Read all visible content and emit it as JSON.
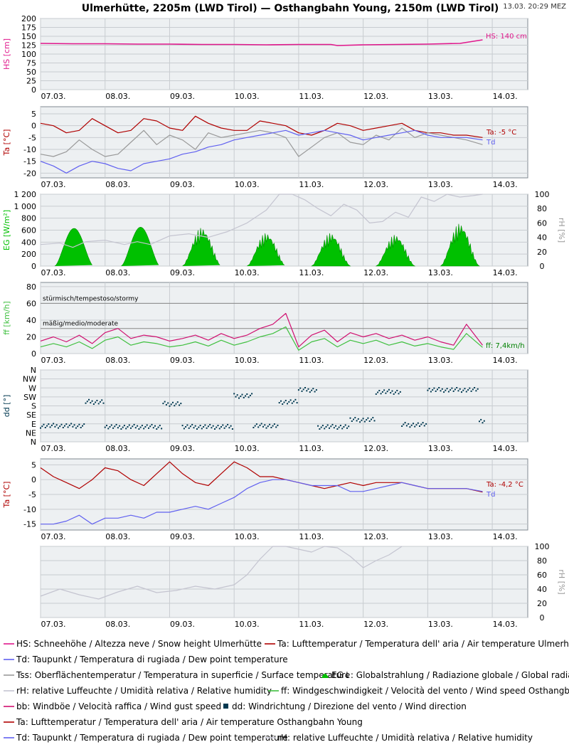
{
  "header": {
    "title": "Ulmerhütte, 2205m (LWD Tirol) — Osthangbahn Young, 2150m (LWD Tirol)",
    "timestamp": "13.03. 20:29 MEZ"
  },
  "colors": {
    "hs": "#e0188c",
    "ta": "#b00000",
    "td": "#6060f0",
    "tss": "#999999",
    "eg": "#00c000",
    "rh": "#c4c4d0",
    "ff": "#40c040",
    "bb": "#d01070",
    "dd": "#003850",
    "plot_bg": "#edf0f2",
    "grid": "#c8ccd0"
  },
  "chart_data": [
    {
      "id": "hs",
      "type": "line",
      "ylabel": "HS [cm]",
      "ylim": [
        0,
        200
      ],
      "yticks": [
        "0",
        "25",
        "50",
        "75",
        "100",
        "125",
        "150",
        "175",
        "200"
      ],
      "categories": [
        "07.03.",
        "08.03.",
        "09.03.",
        "10.03.",
        "11.03.",
        "12.03.",
        "13.03.",
        "14.03."
      ],
      "annotation": "HS: 140 cm",
      "series": [
        {
          "key": "hs",
          "x": [
            0,
            0.5,
            1,
            1.5,
            2,
            2.5,
            3,
            3.5,
            4,
            4.5,
            4.6,
            5,
            5.5,
            6,
            6.5,
            6.85
          ],
          "y": [
            130,
            129,
            129,
            128,
            128,
            127,
            127,
            126,
            127,
            127,
            124,
            126,
            127,
            128,
            130,
            140
          ]
        }
      ]
    },
    {
      "id": "ta1",
      "type": "line",
      "ylabel": "Ta [°C]",
      "ylim": [
        -22,
        8
      ],
      "yticks": [
        "5",
        "0",
        "-5",
        "-10",
        "-15",
        "-20"
      ],
      "categories": [
        "07.03.",
        "08.03.",
        "09.03.",
        "10.03.",
        "11.03.",
        "12.03.",
        "13.03.",
        "14.03."
      ],
      "annotation_ta": "Ta: -5 °C",
      "annotation_td": "Td",
      "series": [
        {
          "key": "ta",
          "x": [
            0,
            0.2,
            0.4,
            0.6,
            0.8,
            1.0,
            1.2,
            1.4,
            1.6,
            1.8,
            2.0,
            2.2,
            2.4,
            2.6,
            2.8,
            3.0,
            3.2,
            3.4,
            3.6,
            3.8,
            4.0,
            4.2,
            4.4,
            4.6,
            4.8,
            5.0,
            5.2,
            5.4,
            5.6,
            5.8,
            6.0,
            6.2,
            6.4,
            6.6,
            6.85
          ],
          "y": [
            1,
            0,
            -3,
            -2,
            3,
            0,
            -3,
            -2,
            3,
            2,
            -1,
            -2,
            4,
            1,
            -1,
            -2,
            -2,
            2,
            1,
            0,
            -3,
            -4,
            -2,
            1,
            0,
            -2,
            -1,
            0,
            1,
            -2,
            -3,
            -3,
            -4,
            -4,
            -5
          ]
        },
        {
          "key": "tss",
          "x": [
            0,
            0.2,
            0.4,
            0.6,
            0.8,
            1.0,
            1.2,
            1.4,
            1.6,
            1.8,
            2.0,
            2.2,
            2.4,
            2.6,
            2.8,
            3.0,
            3.2,
            3.4,
            3.6,
            3.8,
            4.0,
            4.2,
            4.4,
            4.6,
            4.8,
            5.0,
            5.2,
            5.4,
            5.6,
            5.8,
            6.0,
            6.2,
            6.4,
            6.6,
            6.85
          ],
          "y": [
            -12,
            -13,
            -11,
            -6,
            -10,
            -13,
            -12,
            -7,
            -2,
            -8,
            -4,
            -6,
            -10,
            -3,
            -5,
            -4,
            -3,
            -2,
            -3,
            -5,
            -13,
            -9,
            -5,
            -3,
            -7,
            -8,
            -4,
            -6,
            -1,
            -5,
            -3,
            -4,
            -5,
            -6,
            -8
          ]
        },
        {
          "key": "td",
          "x": [
            0,
            0.2,
            0.4,
            0.6,
            0.8,
            1.0,
            1.2,
            1.4,
            1.6,
            1.8,
            2.0,
            2.2,
            2.4,
            2.6,
            2.8,
            3.0,
            3.2,
            3.4,
            3.6,
            3.8,
            4.0,
            4.2,
            4.4,
            4.6,
            4.8,
            5.0,
            5.2,
            5.4,
            5.6,
            5.8,
            6.0,
            6.2,
            6.4,
            6.6,
            6.85
          ],
          "y": [
            -15,
            -17,
            -20,
            -17,
            -15,
            -16,
            -18,
            -19,
            -16,
            -15,
            -14,
            -12,
            -11,
            -9,
            -8,
            -6,
            -5,
            -4,
            -3,
            -2,
            -4,
            -3,
            -2,
            -3,
            -4,
            -6,
            -5,
            -4,
            -3,
            -2,
            -4,
            -5,
            -5,
            -5,
            -6
          ]
        }
      ]
    },
    {
      "id": "eg",
      "type": "area",
      "ylabel": "EG [W/m²]",
      "ylabel_right": "rH [%]",
      "ylim": [
        0,
        1200
      ],
      "ylim_right": [
        0,
        100
      ],
      "yticks": [
        "0",
        "200",
        "400",
        "600",
        "800",
        "1 000",
        "1 200"
      ],
      "yticks_right": [
        "0",
        "20",
        "40",
        "60",
        "80",
        "100"
      ],
      "categories": [
        "07.03.",
        "08.03.",
        "09.03.",
        "10.03.",
        "11.03.",
        "12.03.",
        "13.03.",
        "14.03."
      ],
      "radiation_days": [
        {
          "center": 0.52,
          "peak": 630
        },
        {
          "center": 1.55,
          "peak": 650
        },
        {
          "center": 2.5,
          "peak": 650
        },
        {
          "center": 3.5,
          "peak": 560
        },
        {
          "center": 4.5,
          "peak": 560
        },
        {
          "center": 5.5,
          "peak": 530
        },
        {
          "center": 6.5,
          "peak": 720
        },
        {
          "center": 7.5,
          "peak": 560
        }
      ],
      "series": [
        {
          "key": "rh",
          "x": [
            0,
            0.3,
            0.5,
            0.7,
            1.0,
            1.3,
            1.5,
            1.7,
            2.0,
            2.3,
            2.6,
            2.9,
            3.2,
            3.5,
            3.7,
            3.9,
            4.1,
            4.3,
            4.5,
            4.7,
            4.9,
            5.1,
            5.3,
            5.5,
            5.7,
            5.9,
            6.1,
            6.3,
            6.5,
            6.7,
            6.85
          ],
          "y": [
            30,
            32,
            26,
            34,
            36,
            30,
            34,
            30,
            42,
            45,
            40,
            48,
            60,
            78,
            100,
            100,
            92,
            80,
            70,
            86,
            78,
            60,
            62,
            75,
            68,
            96,
            90,
            100,
            96,
            98,
            100
          ]
        }
      ]
    },
    {
      "id": "ff",
      "type": "line",
      "ylabel": "ff [km/h]",
      "ylim": [
        0,
        85
      ],
      "yticks": [
        "0",
        "20",
        "40",
        "60",
        "80"
      ],
      "categories": [
        "07.03.",
        "08.03.",
        "09.03.",
        "10.03.",
        "11.03.",
        "12.03.",
        "13.03.",
        "14.03."
      ],
      "band_labels": [
        "stürmisch/tempestoso/stormy",
        "mäßig/medio/moderate"
      ],
      "annotation": "ff: 7,4km/h",
      "series": [
        {
          "key": "bb",
          "x": [
            0,
            0.2,
            0.4,
            0.6,
            0.8,
            1.0,
            1.2,
            1.4,
            1.6,
            1.8,
            2.0,
            2.2,
            2.4,
            2.6,
            2.8,
            3.0,
            3.2,
            3.4,
            3.6,
            3.8,
            4.0,
            4.2,
            4.4,
            4.6,
            4.8,
            5.0,
            5.2,
            5.4,
            5.6,
            5.8,
            6.0,
            6.2,
            6.4,
            6.6,
            6.85
          ],
          "y": [
            15,
            20,
            14,
            22,
            12,
            25,
            30,
            18,
            22,
            20,
            15,
            18,
            22,
            16,
            24,
            18,
            22,
            30,
            35,
            48,
            8,
            22,
            28,
            14,
            25,
            20,
            24,
            18,
            22,
            16,
            20,
            14,
            10,
            35,
            10
          ]
        },
        {
          "key": "ff",
          "x": [
            0,
            0.2,
            0.4,
            0.6,
            0.8,
            1.0,
            1.2,
            1.4,
            1.6,
            1.8,
            2.0,
            2.2,
            2.4,
            2.6,
            2.8,
            3.0,
            3.2,
            3.4,
            3.6,
            3.8,
            4.0,
            4.2,
            4.4,
            4.6,
            4.8,
            5.0,
            5.2,
            5.4,
            5.6,
            5.8,
            6.0,
            6.2,
            6.4,
            6.6,
            6.85
          ],
          "y": [
            8,
            12,
            8,
            14,
            6,
            16,
            20,
            10,
            14,
            12,
            8,
            10,
            14,
            9,
            16,
            10,
            14,
            20,
            24,
            32,
            4,
            14,
            18,
            8,
            16,
            12,
            16,
            10,
            14,
            9,
            12,
            8,
            5,
            24,
            7.4
          ]
        }
      ]
    },
    {
      "id": "dd",
      "type": "scatter",
      "ylabel": "dd [°]",
      "ylim": [
        0,
        360
      ],
      "yticks": [
        "N",
        "NE",
        "E",
        "SE",
        "S",
        "SW",
        "W",
        "NW",
        "N"
      ],
      "categories": [
        "07.03.",
        "08.03.",
        "09.03.",
        "10.03.",
        "11.03.",
        "12.03.",
        "13.03.",
        "14.03."
      ],
      "segments": [
        {
          "x0": 0.0,
          "x1": 0.7,
          "dir": 80
        },
        {
          "x0": 0.7,
          "x1": 1.0,
          "dir": 200
        },
        {
          "x0": 1.0,
          "x1": 1.9,
          "dir": 75
        },
        {
          "x0": 1.9,
          "x1": 2.2,
          "dir": 190
        },
        {
          "x0": 2.2,
          "x1": 3.0,
          "dir": 75
        },
        {
          "x0": 3.0,
          "x1": 3.3,
          "dir": 230
        },
        {
          "x0": 3.3,
          "x1": 3.7,
          "dir": 80
        },
        {
          "x0": 3.7,
          "x1": 4.0,
          "dir": 200
        },
        {
          "x0": 4.0,
          "x1": 4.3,
          "dir": 260
        },
        {
          "x0": 4.3,
          "x1": 4.8,
          "dir": 75
        },
        {
          "x0": 4.8,
          "x1": 5.2,
          "dir": 110
        },
        {
          "x0": 5.2,
          "x1": 5.6,
          "dir": 250
        },
        {
          "x0": 5.6,
          "x1": 6.0,
          "dir": 85
        },
        {
          "x0": 6.0,
          "x1": 6.8,
          "dir": 260
        },
        {
          "x0": 6.8,
          "x1": 6.9,
          "dir": 100
        }
      ]
    },
    {
      "id": "ta2",
      "type": "line",
      "ylabel": "Ta [°C]",
      "ylim": [
        -17,
        7
      ],
      "yticks": [
        "5",
        "0",
        "-5",
        "-10",
        "-15"
      ],
      "categories": [
        "07.03.",
        "08.03.",
        "09.03.",
        "10.03.",
        "11.03.",
        "12.03.",
        "13.03.",
        "14.03."
      ],
      "annotation_ta": "Ta: -4,2 °C",
      "annotation_td": "Td",
      "series": [
        {
          "key": "ta",
          "x": [
            0,
            0.2,
            0.4,
            0.6,
            0.8,
            1.0,
            1.2,
            1.4,
            1.6,
            1.8,
            2.0,
            2.2,
            2.4,
            2.6,
            2.8,
            3.0,
            3.2,
            3.4,
            3.6,
            3.8,
            4.0,
            4.2,
            4.4,
            4.6,
            4.8,
            5.0,
            5.2,
            5.4,
            5.6,
            5.8,
            6.0,
            6.2,
            6.4,
            6.6,
            6.85
          ],
          "y": [
            4,
            1,
            -1,
            -3,
            0,
            4,
            3,
            0,
            -2,
            2,
            6,
            2,
            -1,
            -2,
            2,
            6,
            4,
            1,
            1,
            0,
            -1,
            -2,
            -3,
            -2,
            -1,
            -2,
            -1,
            -1,
            -1,
            -2,
            -3,
            -3,
            -3,
            -3,
            -4.2
          ]
        },
        {
          "key": "td",
          "x": [
            0,
            0.2,
            0.4,
            0.6,
            0.8,
            1.0,
            1.2,
            1.4,
            1.6,
            1.8,
            2.0,
            2.2,
            2.4,
            2.6,
            2.8,
            3.0,
            3.2,
            3.4,
            3.6,
            3.8,
            4.0,
            4.2,
            4.4,
            4.6,
            4.8,
            5.0,
            5.2,
            5.4,
            5.6,
            5.8,
            6.0,
            6.2,
            6.4,
            6.6,
            6.85
          ],
          "y": [
            -15,
            -15,
            -14,
            -12,
            -15,
            -13,
            -13,
            -12,
            -13,
            -11,
            -11,
            -10,
            -9,
            -10,
            -8,
            -6,
            -3,
            -1,
            0,
            0,
            -1,
            -2,
            -2,
            -2,
            -4,
            -4,
            -3,
            -2,
            -1,
            -2,
            -3,
            -3,
            -3,
            -3,
            -4
          ]
        }
      ]
    },
    {
      "id": "rh2",
      "type": "line",
      "ylabel_right": "rH [%]",
      "ylim_right": [
        0,
        100
      ],
      "yticks_right": [
        "0",
        "20",
        "40",
        "60",
        "80",
        "100"
      ],
      "categories": [
        "07.03.",
        "08.03.",
        "09.03.",
        "10.03.",
        "11.03.",
        "12.03.",
        "13.03.",
        "14.03."
      ],
      "series": [
        {
          "key": "rh",
          "x": [
            0,
            0.3,
            0.6,
            0.9,
            1.2,
            1.5,
            1.8,
            2.1,
            2.4,
            2.7,
            3.0,
            3.2,
            3.4,
            3.6,
            3.8,
            4.0,
            4.2,
            4.4,
            4.6,
            4.8,
            5.0,
            5.2,
            5.4,
            5.6
          ],
          "y": [
            30,
            40,
            32,
            26,
            36,
            44,
            35,
            38,
            44,
            40,
            46,
            60,
            82,
            100,
            100,
            96,
            92,
            100,
            98,
            86,
            70,
            80,
            88,
            100
          ]
        }
      ]
    }
  ],
  "legend": [
    [
      {
        "key": "hs",
        "style": "line",
        "text": "HS: Schneehöhe / Altezza neve / Snow height  Ulmerhütte"
      },
      {
        "key": "ta",
        "style": "line",
        "text": "Ta: Lufttemperatur / Temperatura dell' aria / Air temperature  Ulmerhütte"
      }
    ],
    [
      {
        "key": "td",
        "style": "line",
        "text": "Td: Taupunkt / Temperatura di rugiada / Dew point temperature"
      }
    ],
    [
      {
        "key": "tss",
        "style": "line",
        "text": "Tss: Oberflächentemperatur / Temperatura in superficie / Surface temperature"
      },
      {
        "key": "eg",
        "style": "blob",
        "text": "EG↓: Globalstrahlung / Radiazione globale / Global radiation"
      }
    ],
    [
      {
        "key": "rh",
        "style": "line",
        "text": "rH: relative Luffeuchte / Umidità relativa / Relative humidity"
      },
      {
        "key": "ff",
        "style": "line",
        "text": "ff: Windgeschwindigkeit / Velocità del vento / Wind speed  Osthangbahn Young"
      }
    ],
    [
      {
        "key": "bb",
        "style": "line",
        "text": "bb: Windböe / Velocità raffica / Wind gust speed"
      },
      {
        "key": "dd",
        "style": "square",
        "text": "dd: Windrichtung / Direzione del vento / Wind direction"
      }
    ],
    [
      {
        "key": "ta",
        "style": "line",
        "text": "Ta: Lufttemperatur / Temperatura dell' aria / Air temperature  Osthangbahn Young"
      }
    ],
    [
      {
        "key": "td",
        "style": "line",
        "text": "Td: Taupunkt / Temperatura di rugiada / Dew point temperature"
      },
      {
        "key": "rh",
        "style": "line",
        "text": "rH: relative Luffeuchte / Umidità relativa / Relative humidity"
      }
    ]
  ]
}
